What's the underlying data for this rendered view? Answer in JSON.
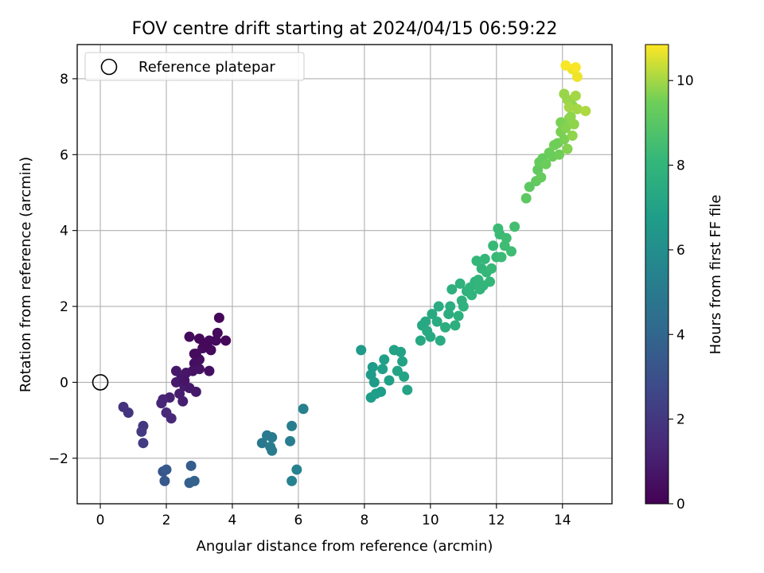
{
  "chart_data": {
    "type": "scatter",
    "title": "FOV centre drift starting at 2024/04/15 06:59:22",
    "xlabel": "Angular distance from reference (arcmin)",
    "ylabel": "Rotation from reference (arcmin)",
    "xlim": [
      -0.7,
      15.5
    ],
    "ylim": [
      -3.2,
      8.9
    ],
    "xticks": [
      0,
      2,
      4,
      6,
      8,
      10,
      12,
      14
    ],
    "yticks": [
      -2,
      0,
      2,
      4,
      6,
      8
    ],
    "grid": true,
    "legend": {
      "placement": "top-left",
      "entries": [
        {
          "label": "Reference platepar",
          "marker": "open-circle"
        }
      ]
    },
    "reference_point": {
      "x": 0,
      "y": 0
    },
    "colorbar": {
      "label": "Hours from first FF file",
      "colormap": "viridis",
      "range": [
        0,
        10.85
      ],
      "ticks": [
        0,
        2,
        4,
        6,
        8,
        10
      ]
    },
    "points": [
      {
        "x": 2.7,
        "y": 1.2,
        "c": 0.3
      },
      {
        "x": 3.0,
        "y": 1.15,
        "c": 0.2
      },
      {
        "x": 3.6,
        "y": 1.7,
        "c": 0.2
      },
      {
        "x": 3.5,
        "y": 1.1,
        "c": 0.3
      },
      {
        "x": 3.8,
        "y": 1.1,
        "c": 0.2
      },
      {
        "x": 3.55,
        "y": 1.3,
        "c": 0.3
      },
      {
        "x": 3.3,
        "y": 1.1,
        "c": 0.3
      },
      {
        "x": 3.1,
        "y": 0.9,
        "c": 0.4
      },
      {
        "x": 2.9,
        "y": 0.75,
        "c": 0.4
      },
      {
        "x": 3.0,
        "y": 0.6,
        "c": 0.5
      },
      {
        "x": 2.85,
        "y": 0.5,
        "c": 0.5
      },
      {
        "x": 2.8,
        "y": 0.3,
        "c": 0.6
      },
      {
        "x": 3.0,
        "y": 0.35,
        "c": 0.6
      },
      {
        "x": 3.3,
        "y": 0.3,
        "c": 0.5
      },
      {
        "x": 2.6,
        "y": 0.25,
        "c": 0.7
      },
      {
        "x": 2.3,
        "y": 0.3,
        "c": 0.8
      },
      {
        "x": 2.45,
        "y": 0.1,
        "c": 0.8
      },
      {
        "x": 2.3,
        "y": 0.0,
        "c": 0.9
      },
      {
        "x": 2.55,
        "y": -0.1,
        "c": 0.9
      },
      {
        "x": 2.7,
        "y": -0.15,
        "c": 0.8
      },
      {
        "x": 2.9,
        "y": -0.25,
        "c": 0.8
      },
      {
        "x": 2.4,
        "y": -0.3,
        "c": 1.0
      },
      {
        "x": 2.5,
        "y": -0.5,
        "c": 1.0
      },
      {
        "x": 2.1,
        "y": -0.4,
        "c": 1.1
      },
      {
        "x": 1.9,
        "y": -0.45,
        "c": 1.2
      },
      {
        "x": 1.85,
        "y": -0.55,
        "c": 1.3
      },
      {
        "x": 2.0,
        "y": -0.8,
        "c": 1.4
      },
      {
        "x": 2.15,
        "y": -0.95,
        "c": 1.4
      },
      {
        "x": 2.85,
        "y": 0.75,
        "c": 0.35
      },
      {
        "x": 3.15,
        "y": 1.0,
        "c": 0.25
      },
      {
        "x": 3.35,
        "y": 0.85,
        "c": 0.3
      },
      {
        "x": 2.55,
        "y": 0.05,
        "c": 0.7
      },
      {
        "x": 0.7,
        "y": -0.65,
        "c": 1.8
      },
      {
        "x": 0.85,
        "y": -0.8,
        "c": 1.9
      },
      {
        "x": 1.3,
        "y": -1.15,
        "c": 2.0
      },
      {
        "x": 1.25,
        "y": -1.3,
        "c": 2.1
      },
      {
        "x": 1.3,
        "y": -1.6,
        "c": 2.2
      },
      {
        "x": 1.9,
        "y": -2.35,
        "c": 3.3
      },
      {
        "x": 1.95,
        "y": -2.6,
        "c": 3.4
      },
      {
        "x": 2.0,
        "y": -2.3,
        "c": 3.4
      },
      {
        "x": 2.75,
        "y": -2.2,
        "c": 3.6
      },
      {
        "x": 2.7,
        "y": -2.65,
        "c": 3.7
      },
      {
        "x": 2.85,
        "y": -2.6,
        "c": 3.8
      },
      {
        "x": 4.9,
        "y": -1.6,
        "c": 4.9
      },
      {
        "x": 5.05,
        "y": -1.4,
        "c": 5.0
      },
      {
        "x": 5.2,
        "y": -1.45,
        "c": 5.0
      },
      {
        "x": 5.15,
        "y": -1.7,
        "c": 5.1
      },
      {
        "x": 5.2,
        "y": -1.8,
        "c": 5.1
      },
      {
        "x": 5.8,
        "y": -1.15,
        "c": 5.2
      },
      {
        "x": 5.75,
        "y": -1.55,
        "c": 5.2
      },
      {
        "x": 6.15,
        "y": -0.7,
        "c": 5.3
      },
      {
        "x": 5.95,
        "y": -2.3,
        "c": 5.4
      },
      {
        "x": 5.8,
        "y": -2.6,
        "c": 5.4
      },
      {
        "x": 7.9,
        "y": 0.85,
        "c": 6.6
      },
      {
        "x": 8.25,
        "y": 0.4,
        "c": 6.6
      },
      {
        "x": 8.2,
        "y": 0.2,
        "c": 6.7
      },
      {
        "x": 8.3,
        "y": 0.0,
        "c": 6.7
      },
      {
        "x": 8.2,
        "y": -0.4,
        "c": 6.8
      },
      {
        "x": 8.35,
        "y": -0.3,
        "c": 6.8
      },
      {
        "x": 8.5,
        "y": -0.25,
        "c": 6.8
      },
      {
        "x": 8.55,
        "y": 0.35,
        "c": 6.9
      },
      {
        "x": 8.6,
        "y": 0.6,
        "c": 6.9
      },
      {
        "x": 8.75,
        "y": 0.05,
        "c": 6.9
      },
      {
        "x": 8.9,
        "y": 0.85,
        "c": 7.0
      },
      {
        "x": 9.1,
        "y": 0.8,
        "c": 7.0
      },
      {
        "x": 9.15,
        "y": 0.55,
        "c": 7.0
      },
      {
        "x": 9.0,
        "y": 0.3,
        "c": 7.1
      },
      {
        "x": 9.2,
        "y": 0.15,
        "c": 7.1
      },
      {
        "x": 9.3,
        "y": -0.2,
        "c": 7.1
      },
      {
        "x": 9.7,
        "y": 1.1,
        "c": 7.3
      },
      {
        "x": 9.75,
        "y": 1.5,
        "c": 7.3
      },
      {
        "x": 9.85,
        "y": 1.6,
        "c": 7.3
      },
      {
        "x": 9.9,
        "y": 1.35,
        "c": 7.4
      },
      {
        "x": 10.0,
        "y": 1.2,
        "c": 7.4
      },
      {
        "x": 10.05,
        "y": 1.8,
        "c": 7.4
      },
      {
        "x": 10.25,
        "y": 2.0,
        "c": 7.5
      },
      {
        "x": 10.2,
        "y": 1.6,
        "c": 7.5
      },
      {
        "x": 10.3,
        "y": 1.1,
        "c": 7.5
      },
      {
        "x": 10.45,
        "y": 1.45,
        "c": 7.6
      },
      {
        "x": 10.55,
        "y": 1.8,
        "c": 7.6
      },
      {
        "x": 10.6,
        "y": 2.0,
        "c": 7.6
      },
      {
        "x": 10.65,
        "y": 2.45,
        "c": 7.7
      },
      {
        "x": 10.75,
        "y": 1.5,
        "c": 7.7
      },
      {
        "x": 10.85,
        "y": 1.75,
        "c": 7.7
      },
      {
        "x": 10.9,
        "y": 2.6,
        "c": 7.8
      },
      {
        "x": 11.0,
        "y": 2.0,
        "c": 7.8
      },
      {
        "x": 11.1,
        "y": 2.4,
        "c": 7.8
      },
      {
        "x": 11.2,
        "y": 2.5,
        "c": 7.9
      },
      {
        "x": 11.25,
        "y": 2.3,
        "c": 7.9
      },
      {
        "x": 11.35,
        "y": 2.65,
        "c": 7.9
      },
      {
        "x": 11.45,
        "y": 2.7,
        "c": 8.0
      },
      {
        "x": 11.5,
        "y": 2.45,
        "c": 8.0
      },
      {
        "x": 11.55,
        "y": 3.0,
        "c": 8.0
      },
      {
        "x": 11.4,
        "y": 3.2,
        "c": 8.1
      },
      {
        "x": 11.65,
        "y": 3.25,
        "c": 8.1
      },
      {
        "x": 11.8,
        "y": 2.65,
        "c": 8.1
      },
      {
        "x": 11.7,
        "y": 2.9,
        "c": 8.1
      },
      {
        "x": 11.85,
        "y": 3.0,
        "c": 8.2
      },
      {
        "x": 11.9,
        "y": 3.6,
        "c": 8.2
      },
      {
        "x": 12.0,
        "y": 3.3,
        "c": 8.2
      },
      {
        "x": 12.05,
        "y": 4.05,
        "c": 8.3
      },
      {
        "x": 12.1,
        "y": 3.9,
        "c": 8.3
      },
      {
        "x": 12.15,
        "y": 3.3,
        "c": 8.3
      },
      {
        "x": 12.3,
        "y": 3.8,
        "c": 8.4
      },
      {
        "x": 12.45,
        "y": 3.45,
        "c": 8.4
      },
      {
        "x": 12.55,
        "y": 4.1,
        "c": 8.5
      },
      {
        "x": 12.25,
        "y": 3.6,
        "c": 8.4
      },
      {
        "x": 11.6,
        "y": 2.55,
        "c": 8.0
      },
      {
        "x": 10.95,
        "y": 2.15,
        "c": 7.8
      },
      {
        "x": 12.9,
        "y": 4.85,
        "c": 9.1
      },
      {
        "x": 13.0,
        "y": 5.15,
        "c": 9.1
      },
      {
        "x": 13.2,
        "y": 5.3,
        "c": 9.2
      },
      {
        "x": 13.25,
        "y": 5.6,
        "c": 9.2
      },
      {
        "x": 13.3,
        "y": 5.8,
        "c": 9.3
      },
      {
        "x": 13.35,
        "y": 5.4,
        "c": 9.3
      },
      {
        "x": 13.4,
        "y": 5.9,
        "c": 9.3
      },
      {
        "x": 13.5,
        "y": 5.75,
        "c": 9.4
      },
      {
        "x": 13.6,
        "y": 6.05,
        "c": 9.4
      },
      {
        "x": 13.7,
        "y": 5.95,
        "c": 9.4
      },
      {
        "x": 13.75,
        "y": 6.25,
        "c": 9.5
      },
      {
        "x": 13.85,
        "y": 6.3,
        "c": 9.5
      },
      {
        "x": 13.9,
        "y": 6.0,
        "c": 9.5
      },
      {
        "x": 13.95,
        "y": 6.6,
        "c": 9.6
      },
      {
        "x": 13.95,
        "y": 6.85,
        "c": 9.6
      },
      {
        "x": 14.05,
        "y": 6.4,
        "c": 9.6
      },
      {
        "x": 14.1,
        "y": 6.7,
        "c": 9.7
      },
      {
        "x": 14.15,
        "y": 6.15,
        "c": 9.7
      },
      {
        "x": 14.2,
        "y": 6.95,
        "c": 9.7
      },
      {
        "x": 14.25,
        "y": 7.0,
        "c": 9.8
      },
      {
        "x": 14.3,
        "y": 7.3,
        "c": 9.8
      },
      {
        "x": 14.35,
        "y": 6.8,
        "c": 9.8
      },
      {
        "x": 14.3,
        "y": 6.5,
        "c": 9.8
      },
      {
        "x": 14.05,
        "y": 7.6,
        "c": 9.9
      },
      {
        "x": 14.15,
        "y": 7.45,
        "c": 9.9
      },
      {
        "x": 14.4,
        "y": 7.55,
        "c": 10.0
      },
      {
        "x": 14.45,
        "y": 7.2,
        "c": 10.0
      },
      {
        "x": 14.7,
        "y": 7.15,
        "c": 10.1
      },
      {
        "x": 14.2,
        "y": 7.25,
        "c": 10.0
      },
      {
        "x": 14.3,
        "y": 8.25,
        "c": 10.7
      },
      {
        "x": 14.1,
        "y": 8.35,
        "c": 10.8
      },
      {
        "x": 14.4,
        "y": 8.3,
        "c": 10.8
      },
      {
        "x": 14.45,
        "y": 8.05,
        "c": 10.7
      }
    ]
  }
}
